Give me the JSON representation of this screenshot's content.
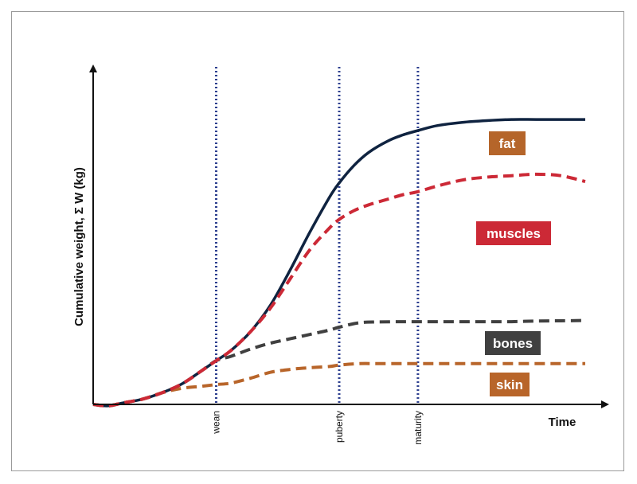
{
  "chart_data": {
    "type": "line",
    "title": "",
    "xlabel": "Time",
    "ylabel": "Cumulative weight, Σ W (kg)",
    "xlim": [
      0,
      100
    ],
    "ylim": [
      0,
      100
    ],
    "grid": false,
    "markers": [
      {
        "label": "wean",
        "x": 25
      },
      {
        "label": "puberty",
        "x": 50
      },
      {
        "label": "maturity",
        "x": 66
      }
    ],
    "series": [
      {
        "name": "fat",
        "color": "#0f2340",
        "dash": "solid",
        "x": [
          0,
          3,
          6,
          10,
          14,
          18,
          22,
          25,
          28,
          32,
          36,
          40,
          44,
          48,
          50,
          53,
          56,
          60,
          63,
          66,
          70,
          75,
          80,
          85,
          90,
          95,
          100
        ],
        "y": [
          0,
          -0.5,
          0.5,
          1.8,
          4,
          7,
          11.5,
          15,
          18.5,
          25,
          34,
          46,
          59,
          71,
          76,
          82,
          86.5,
          90.5,
          92.5,
          94,
          95.7,
          96.8,
          97.4,
          97.8,
          97.8,
          97.8,
          97.8
        ]
      },
      {
        "name": "muscles",
        "color": "#cc2936",
        "dash": "dashed",
        "x": [
          0,
          3,
          6,
          10,
          14,
          18,
          22,
          25,
          28,
          32,
          36,
          40,
          44,
          48,
          50,
          53,
          56,
          60,
          63,
          66,
          70,
          75,
          80,
          85,
          90,
          95,
          100
        ],
        "y": [
          0,
          -0.5,
          0.5,
          1.8,
          4,
          7,
          11.5,
          15,
          18.5,
          25,
          33,
          43,
          53,
          60.5,
          63.5,
          66.5,
          68.5,
          70.5,
          72,
          73,
          75,
          77,
          78,
          78.5,
          79,
          78.5,
          76.5
        ]
      },
      {
        "name": "bones",
        "color": "#404040",
        "dash": "dashed",
        "x": [
          0,
          3,
          6,
          10,
          14,
          18,
          22,
          25,
          28,
          32,
          36,
          40,
          44,
          48,
          50,
          54,
          58,
          63,
          66,
          70,
          75,
          80,
          85,
          90,
          95,
          100
        ],
        "y": [
          0,
          -0.5,
          0.5,
          1.8,
          4,
          7,
          11.5,
          15,
          16.5,
          19,
          21,
          22.5,
          24,
          25.5,
          26.5,
          28,
          28.3,
          28.4,
          28.4,
          28.4,
          28.4,
          28.4,
          28.4,
          28.6,
          28.7,
          28.8
        ]
      },
      {
        "name": "skin",
        "color": "#b8652a",
        "dash": "dashed",
        "x": [
          0,
          3,
          6,
          10,
          14,
          18,
          22,
          25,
          28,
          32,
          36,
          40,
          44,
          48,
          50,
          54,
          58,
          63,
          66,
          70,
          75,
          80,
          85,
          90,
          95,
          100
        ],
        "y": [
          0,
          -0.5,
          0.5,
          1.8,
          4,
          5.5,
          6.2,
          6.8,
          7.3,
          9,
          11,
          12,
          12.6,
          13,
          13.5,
          14,
          14,
          14,
          14,
          14,
          14,
          14,
          14,
          14,
          14,
          14
        ]
      }
    ],
    "labels": [
      {
        "text": "fat",
        "series": "fat",
        "color": "#b5652a"
      },
      {
        "text": "muscles",
        "series": "muscles",
        "color": "#cc2936"
      },
      {
        "text": "bones",
        "series": "bones",
        "color": "#404040"
      },
      {
        "text": "skin",
        "series": "skin",
        "color": "#b8652a"
      }
    ],
    "marker_color": "#2d3f8f"
  }
}
